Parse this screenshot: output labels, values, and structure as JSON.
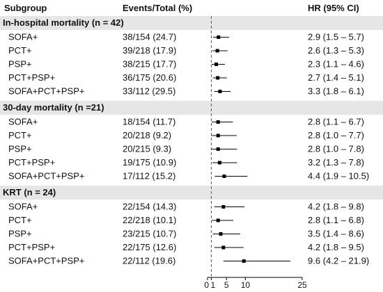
{
  "chart_data": {
    "type": "forest",
    "columns": {
      "subgroup": "Subgroup",
      "events": "Events/Total (%)",
      "hr": "HR (95% CI)"
    },
    "x_axis": {
      "min": 0,
      "max": 25,
      "ticks": [
        "0",
        "1",
        "5",
        "10",
        "25"
      ],
      "reference_line": 1
    },
    "groups": [
      {
        "title": "In-hospital mortality (n = 42)",
        "rows": [
          {
            "label": "SOFA+",
            "events": "38/154 (24.7)",
            "hr_text": "2.9 (1.5 – 5.7)",
            "hr": 2.9,
            "lo": 1.5,
            "hi": 5.7
          },
          {
            "label": "PCT+",
            "events": "39/218 (17.9)",
            "hr_text": "2.6 (1.3 – 5.3)",
            "hr": 2.6,
            "lo": 1.3,
            "hi": 5.3
          },
          {
            "label": "PSP+",
            "events": "38/215 (17.7)",
            "hr_text": "2.3 (1.1 – 4.6)",
            "hr": 2.3,
            "lo": 1.1,
            "hi": 4.6
          },
          {
            "label": "PCT+PSP+",
            "events": "36/175 (20.6)",
            "hr_text": "2.7 (1.4 – 5.1)",
            "hr": 2.7,
            "lo": 1.4,
            "hi": 5.1
          },
          {
            "label": "SOFA+PCT+PSP+",
            "events": "33/112 (29.5)",
            "hr_text": "3.3 (1.8 – 6.1)",
            "hr": 3.3,
            "lo": 1.8,
            "hi": 6.1
          }
        ]
      },
      {
        "title": "30-day mortality (n =21)",
        "rows": [
          {
            "label": "SOFA+",
            "events": "18/154 (11.7)",
            "hr_text": "2.8 (1.1 – 6.7)",
            "hr": 2.8,
            "lo": 1.1,
            "hi": 6.7
          },
          {
            "label": "PCT+",
            "events": "20/218 (9.2)",
            "hr_text": "2.8 (1.0 – 7.7)",
            "hr": 2.8,
            "lo": 1.0,
            "hi": 7.7
          },
          {
            "label": "PSP+",
            "events": "20/215 (9.3)",
            "hr_text": "2.8 (1.0 – 7.8)",
            "hr": 2.8,
            "lo": 1.0,
            "hi": 7.8
          },
          {
            "label": "PCT+PSP+",
            "events": "19/175 (10.9)",
            "hr_text": "3.2 (1.3 – 7.8)",
            "hr": 3.2,
            "lo": 1.3,
            "hi": 7.8
          },
          {
            "label": "SOFA+PCT+PSP+",
            "events": "17/112 (15.2)",
            "hr_text": "4.4 (1.9 – 10.5)",
            "hr": 4.4,
            "lo": 1.9,
            "hi": 10.5
          }
        ]
      },
      {
        "title": "KRT (n = 24)",
        "rows": [
          {
            "label": "SOFA+",
            "events": "22/154 (14.3)",
            "hr_text": "4.2 (1.8 – 9.8)",
            "hr": 4.2,
            "lo": 1.8,
            "hi": 9.8
          },
          {
            "label": "PCT+",
            "events": "22/218 (10.1)",
            "hr_text": "2.8 (1.1 – 6.8)",
            "hr": 2.8,
            "lo": 1.1,
            "hi": 6.8
          },
          {
            "label": "PSP+",
            "events": "23/215 (10.7)",
            "hr_text": "3.5 (1.4 – 8.6)",
            "hr": 3.5,
            "lo": 1.4,
            "hi": 8.6
          },
          {
            "label": "PCT+PSP+",
            "events": "22/175 (12.6)",
            "hr_text": "4.2 (1.8 – 9.5)",
            "hr": 4.2,
            "lo": 1.8,
            "hi": 9.5
          },
          {
            "label": "SOFA+PCT+PSP+",
            "events": "22/112 (19.6)",
            "hr_text": "9.6 (4.2 – 21.9)",
            "hr": 9.6,
            "lo": 4.2,
            "hi": 21.9
          }
        ]
      }
    ],
    "colors": {
      "group_band": "#e6e6e6",
      "marker": "#000000",
      "reference_line": "#555555"
    }
  }
}
